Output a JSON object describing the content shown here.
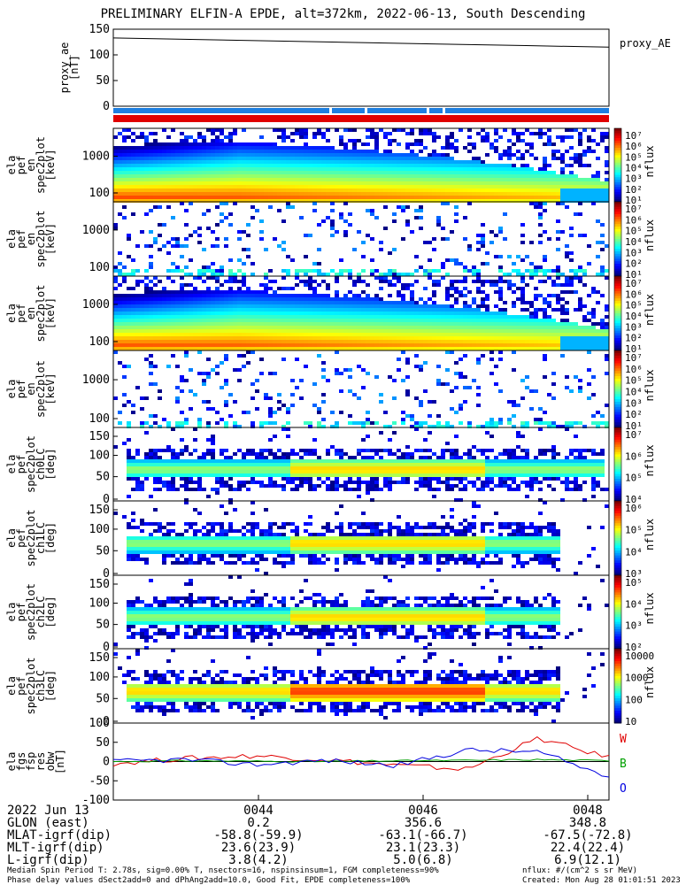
{
  "title": "PRELIMINARY ELFIN-A EPDE, alt=372km, 2022-06-13, South Descending",
  "panels": [
    {
      "kind": "line",
      "ylabel": [
        "proxy_ae",
        "[nT]"
      ],
      "yticks": [
        "150",
        "100",
        "50",
        "0"
      ],
      "legend": "proxy_AE"
    },
    {
      "kind": "energy",
      "ylabel": [
        "ela",
        "pef",
        "en",
        "spec2plot",
        "[keV]"
      ],
      "yticks": [
        "1000",
        "100"
      ],
      "cbar": [
        "10⁷",
        "10⁶",
        "10⁵",
        "10⁴",
        "10³",
        "10²",
        "10¹"
      ],
      "cbar_label": "nflux"
    },
    {
      "kind": "energy",
      "ylabel": [
        "ela",
        "pef",
        "en",
        "spec2plot",
        "[keV]"
      ],
      "yticks": [
        "1000",
        "100"
      ],
      "cbar": [
        "10⁷",
        "10⁶",
        "10⁵",
        "10⁴",
        "10³",
        "10²",
        "10¹"
      ],
      "cbar_label": "nflux"
    },
    {
      "kind": "energy",
      "ylabel": [
        "ela",
        "pef",
        "en",
        "spec2plot",
        "[keV]"
      ],
      "yticks": [
        "1000",
        "100"
      ],
      "cbar": [
        "10⁷",
        "10⁶",
        "10⁵",
        "10⁴",
        "10³",
        "10²",
        "10¹"
      ],
      "cbar_label": "nflux"
    },
    {
      "kind": "energy",
      "ylabel": [
        "ela",
        "pef",
        "en",
        "spec2plot",
        "[keV]"
      ],
      "yticks": [
        "1000",
        "100"
      ],
      "cbar": [
        "10⁷",
        "10⁶",
        "10⁵",
        "10⁴",
        "10³",
        "10²",
        "10¹"
      ],
      "cbar_label": "nflux"
    },
    {
      "kind": "pa",
      "ylabel": [
        "ela",
        "pef",
        "spec2plot",
        "ch0LC",
        "[deg]"
      ],
      "yticks": [
        "150",
        "100",
        "50",
        "0"
      ],
      "cbar": [
        "10⁷",
        "10⁶",
        "10⁵",
        "10⁴"
      ],
      "cbar_label": "nflux"
    },
    {
      "kind": "pa",
      "ylabel": [
        "ela",
        "pef",
        "spec2plot",
        "ch1LC",
        "[deg]"
      ],
      "yticks": [
        "150",
        "100",
        "50",
        "0"
      ],
      "cbar": [
        "10⁶",
        "10⁵",
        "10⁴",
        "10³"
      ],
      "cbar_label": "nflux"
    },
    {
      "kind": "pa",
      "ylabel": [
        "ela",
        "pef",
        "spec2plot",
        "ch2LC",
        "[deg]"
      ],
      "yticks": [
        "150",
        "100",
        "50",
        "0"
      ],
      "cbar": [
        "10⁵",
        "10⁴",
        "10³",
        "10²"
      ],
      "cbar_label": "nflux"
    },
    {
      "kind": "pa",
      "ylabel": [
        "ela",
        "pef",
        "spec2plot",
        "ch3LC",
        "[deg]"
      ],
      "yticks": [
        "150",
        "100",
        "50",
        "0"
      ],
      "cbar": [
        "10000",
        "1000",
        "100",
        "10"
      ],
      "cbar_label": "nflux"
    },
    {
      "kind": "mag",
      "ylabel": [
        "ela",
        "fgs",
        "fsp",
        "res",
        "obw",
        "[nT]"
      ],
      "yticks": [
        "100",
        "50",
        "0",
        "-50",
        "-100"
      ],
      "legend": [
        "W",
        "B",
        "O"
      ]
    }
  ],
  "chart_data": {
    "type": "line",
    "title": "PRELIMINARY ELFIN-A EPDE, alt=372km, 2022-06-13, South Descending",
    "x_ticks": [
      "0044",
      "0046",
      "0048"
    ],
    "series": [
      {
        "name": "proxy_AE",
        "values": [
          133,
          130,
          127,
          124,
          121,
          118,
          115
        ],
        "color": "#000000"
      },
      {
        "name": "W",
        "values": [
          -5,
          8,
          15,
          5,
          -10,
          -20,
          60,
          10
        ],
        "color": "#e00000"
      },
      {
        "name": "B",
        "values": [
          0,
          2,
          1,
          0,
          2,
          3,
          5,
          2
        ],
        "color": "#00a000"
      },
      {
        "name": "O",
        "values": [
          0,
          5,
          -8,
          3,
          -10,
          30,
          25,
          -40
        ],
        "color": "#0000e0"
      }
    ],
    "ylim_ae": [
      0,
      150
    ],
    "ylim_b": [
      -100,
      100
    ]
  },
  "footer": {
    "date": "2022 Jun 13",
    "rows": [
      {
        "label": "GLON (east)",
        "v": [
          "0.2",
          "356.6",
          "348.8"
        ]
      },
      {
        "label": "MLAT-igrf(dip)",
        "v": [
          "-58.8(-59.9)",
          "-63.1(-66.7)",
          "-67.5(-72.8)"
        ]
      },
      {
        "label": "MLT-igrf(dip)",
        "v": [
          "23.6(23.9)",
          "23.1(23.3)",
          "22.4(22.4)"
        ]
      },
      {
        "label": "L-igrf(dip)",
        "v": [
          "3.8(4.2)",
          "5.0(6.8)",
          "6.9(12.1)"
        ]
      }
    ],
    "note1": "Median Spin Period T: 2.78s, sig=0.00% T, nsectors=16, nspinsinsum=1, FGM completeness=90%",
    "note2": "Phase delay values dSect2add=0 and dPhAng2add=10.0, Good Fit, EPDE completeness=100%",
    "unit": "nflux: #/(cm^2 s sr MeV)",
    "created": "Created: Mon Aug 28 01:01:51 2023"
  },
  "colors": {
    "bar_blue": "#1f7fe0",
    "bar_red": "#e00000"
  }
}
